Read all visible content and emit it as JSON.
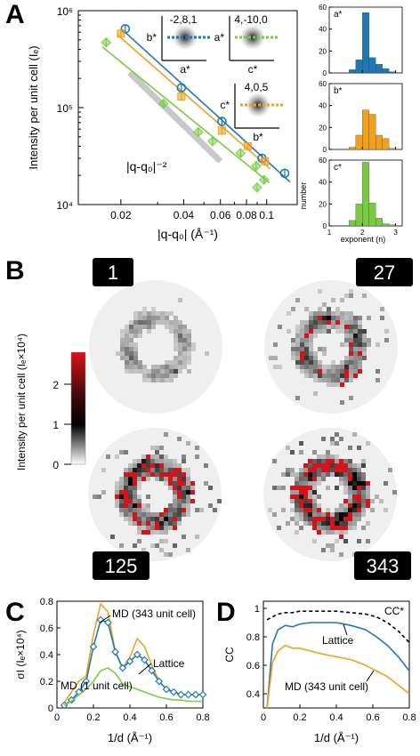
{
  "colors": {
    "blue": "#1f77b4",
    "orange": "#f0a020",
    "green": "#7ac943",
    "gray": "#c8c8c8",
    "red": "#d4141c"
  },
  "panels": {
    "A": "A",
    "B": "B",
    "C": "C",
    "D": "D"
  },
  "chart_data": [
    {
      "id": "A-main",
      "type": "scatter",
      "log_x": true,
      "log_y": true,
      "xlabel": "|q-q₀| (Å⁻¹)",
      "ylabel": "Intensity per unit cell (Iₑ)",
      "xlim": [
        0.0125,
        0.14
      ],
      "ylim": [
        10000,
        1000000
      ],
      "xticks": [
        0.02,
        0.04,
        0.06,
        0.08,
        0.1
      ],
      "xtick_labels": [
        "0.02",
        "0.04",
        "0.06",
        "0.08",
        "0.1"
      ],
      "yticks": [
        10000,
        100000,
        1000000
      ],
      "ytick_labels": [
        "10⁴",
        "10⁵",
        "10⁶"
      ],
      "series": [
        {
          "name": "-2,8,1",
          "color": "blue",
          "x": [
            0.021,
            0.039,
            0.061,
            0.095,
            0.122
          ],
          "y": [
            650000,
            160000,
            72000,
            30000,
            21000
          ]
        },
        {
          "name": "4,-10,0",
          "color": "orange",
          "x": [
            0.02,
            0.039,
            0.061,
            0.081,
            0.098
          ],
          "y": [
            580000,
            130000,
            58000,
            40000,
            28000
          ]
        },
        {
          "name": "4,0,5",
          "color": "green",
          "x": [
            0.017,
            0.032,
            0.047,
            0.055,
            0.075,
            0.089,
            0.097
          ],
          "y": [
            470000,
            110000,
            56000,
            45000,
            34000,
            25000,
            18000
          ]
        }
      ],
      "special_points": [
        {
          "color": "green",
          "x": 0.09,
          "y": 15000,
          "marker": "diamond"
        }
      ],
      "reference_line": {
        "label": "|q-q₀|⁻²",
        "x": [
          0.022,
          0.06
        ],
        "y": [
          230000,
          28000
        ]
      },
      "insets": [
        {
          "label": "-2,8,1",
          "axes": [
            "b*",
            "a*"
          ],
          "color": "blue"
        },
        {
          "label": "4,-10,0",
          "axes": [
            "a*",
            "c*"
          ],
          "color": "green"
        },
        {
          "label": "4,0,5",
          "axes": [
            "c*",
            "b*"
          ],
          "color": "orange"
        }
      ]
    },
    {
      "id": "A-hist",
      "type": "bar",
      "xlabel": "exponent (n)",
      "ylabel": "number",
      "xlim": [
        1,
        3.2
      ],
      "ylim": [
        0,
        60
      ],
      "yticks": [
        0,
        20,
        40,
        60
      ],
      "xticks": [
        1,
        2,
        3
      ],
      "bin_edges": [
        1.6,
        1.8,
        2.0,
        2.2,
        2.4,
        2.6,
        2.8,
        3.0
      ],
      "series": [
        {
          "name": "a*",
          "color": "blue",
          "values": [
            3,
            12,
            55,
            14,
            8,
            4,
            1
          ]
        },
        {
          "name": "b*",
          "color": "orange",
          "values": [
            2,
            13,
            36,
            32,
            13,
            10,
            1
          ]
        },
        {
          "name": "c*",
          "color": "green",
          "values": [
            5,
            20,
            58,
            21,
            7,
            2,
            1
          ]
        }
      ]
    },
    {
      "id": "B",
      "type": "heatmap",
      "colorbar": {
        "label": "Intensity per unit cell (Iₑ×10⁴)",
        "ticks": [
          0,
          1,
          2
        ],
        "range": [
          0,
          2.8
        ]
      },
      "panels": [
        "1",
        "27",
        "125",
        "343"
      ]
    },
    {
      "id": "C",
      "type": "line",
      "xlabel": "1/d (Å⁻¹)",
      "ylabel": "σI (Iₑ×10⁴)",
      "xlim": [
        0,
        0.8
      ],
      "ylim": [
        0,
        0.8
      ],
      "xticks": [
        0,
        0.2,
        0.4,
        0.6,
        0.8
      ],
      "yticks": [
        0,
        0.2,
        0.4,
        0.6,
        0.8
      ],
      "x": [
        0.04,
        0.08,
        0.12,
        0.16,
        0.2,
        0.24,
        0.28,
        0.32,
        0.36,
        0.4,
        0.44,
        0.48,
        0.52,
        0.56,
        0.6,
        0.64,
        0.68,
        0.72,
        0.76,
        0.8
      ],
      "series": [
        {
          "name": "MD (343 unit cell)",
          "color": "orange",
          "values": [
            0.04,
            0.12,
            0.2,
            0.24,
            0.55,
            0.78,
            0.72,
            0.42,
            0.3,
            0.38,
            0.52,
            0.46,
            0.32,
            0.2,
            0.14,
            0.12,
            0.1,
            0.1,
            0.1,
            0.1
          ]
        },
        {
          "name": "Lattice",
          "color": "blue",
          "values": [
            0.02,
            0.06,
            0.12,
            0.2,
            0.46,
            0.66,
            0.64,
            0.42,
            0.3,
            0.35,
            0.4,
            0.36,
            0.28,
            0.2,
            0.14,
            0.12,
            0.1,
            0.1,
            0.1,
            0.1
          ],
          "marker": "diamond"
        },
        {
          "name": "MD (1 unit cell)",
          "color": "green",
          "values": [
            0.02,
            0.05,
            0.1,
            0.14,
            0.2,
            0.28,
            0.3,
            0.26,
            0.18,
            0.16,
            0.14,
            0.12,
            0.1,
            0.08,
            0.07,
            0.06,
            0.06,
            0.05,
            0.05,
            0.05
          ]
        }
      ]
    },
    {
      "id": "D",
      "type": "line",
      "xlabel": "1/d (Å⁻¹)",
      "ylabel": "CC",
      "xlim": [
        0,
        0.8
      ],
      "ylim": [
        0.3,
        1.05
      ],
      "xticks": [
        0,
        0.2,
        0.4,
        0.6,
        0.8
      ],
      "yticks": [
        0.4,
        0.6,
        0.8,
        1
      ],
      "x": [
        0.02,
        0.05,
        0.08,
        0.12,
        0.16,
        0.2,
        0.26,
        0.32,
        0.4,
        0.48,
        0.56,
        0.62,
        0.68,
        0.74,
        0.8
      ],
      "series": [
        {
          "name": "CC*",
          "color": "black",
          "dashed": true,
          "values": [
            0.92,
            0.94,
            0.96,
            0.97,
            0.97,
            0.98,
            0.98,
            0.98,
            0.98,
            0.97,
            0.96,
            0.94,
            0.9,
            0.84,
            0.76
          ]
        },
        {
          "name": "Lattice",
          "color": "blue",
          "values": [
            0.3,
            0.75,
            0.85,
            0.88,
            0.87,
            0.89,
            0.9,
            0.9,
            0.9,
            0.88,
            0.85,
            0.8,
            0.74,
            0.66,
            0.56
          ]
        },
        {
          "name": "MD (343 unit cell)",
          "color": "orange",
          "values": [
            0.3,
            0.62,
            0.7,
            0.74,
            0.72,
            0.72,
            0.7,
            0.68,
            0.66,
            0.64,
            0.6,
            0.56,
            0.52,
            0.46,
            0.4
          ]
        }
      ]
    }
  ]
}
